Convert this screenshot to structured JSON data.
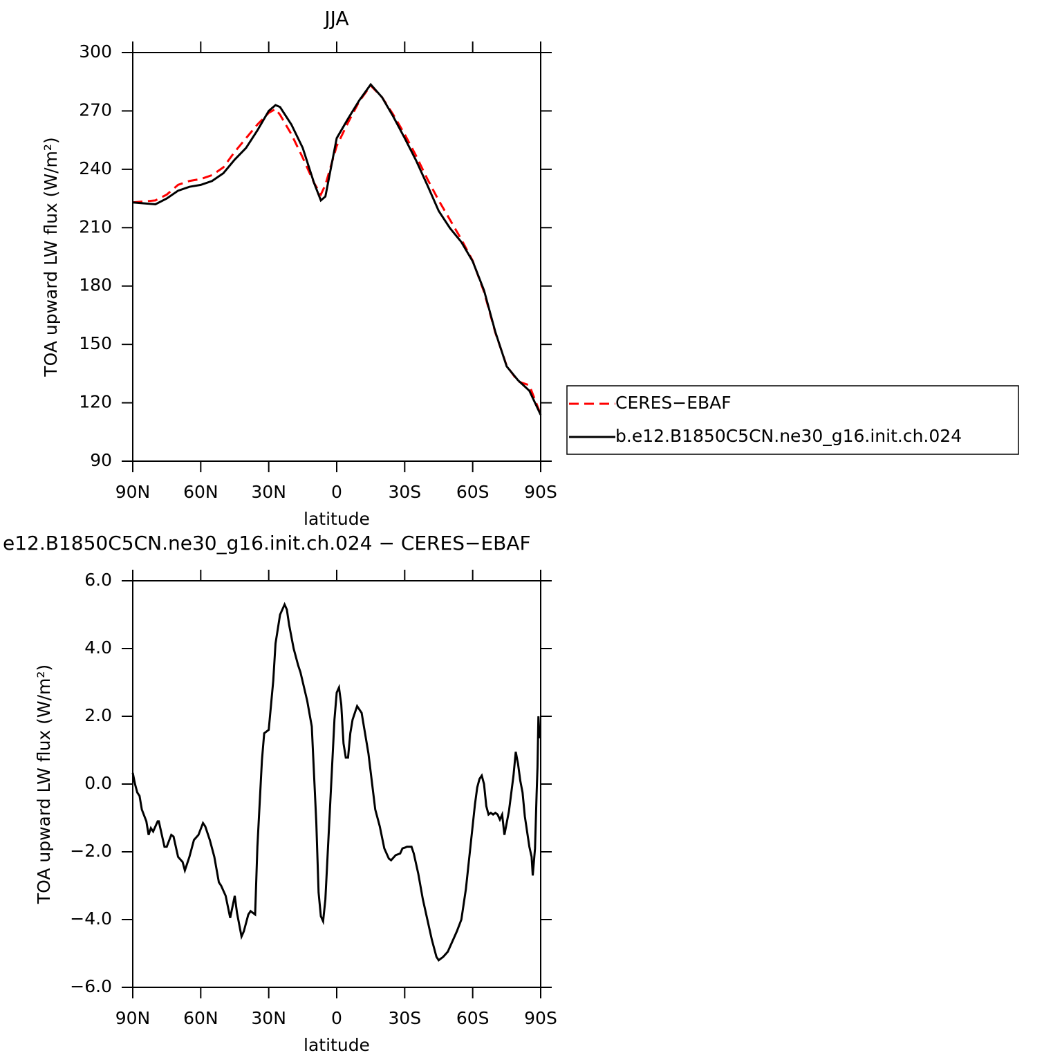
{
  "chart_data": [
    {
      "type": "line",
      "title": "JJA",
      "xlabel": "latitude",
      "ylabel": "TOA upward LW flux (W/m²)",
      "x": [
        90,
        85,
        80,
        75,
        70,
        65,
        60,
        55,
        50,
        45,
        40,
        35,
        30,
        27,
        25,
        20,
        15,
        10,
        7,
        5,
        0,
        -5,
        -10,
        -15,
        -20,
        -25,
        -30,
        -35,
        -40,
        -45,
        -50,
        -55,
        -60,
        -65,
        -70,
        -75,
        -80,
        -85,
        -90
      ],
      "series": [
        {
          "name": "CERES−EBAF",
          "color": "#ff0000",
          "dashed": true,
          "values": [
            223,
            223.5,
            224,
            227,
            232,
            234,
            235,
            237,
            241,
            249,
            256,
            263,
            269,
            271,
            268,
            258,
            246,
            233,
            227,
            232,
            252,
            264,
            275,
            283,
            277,
            268,
            258,
            247,
            235,
            224,
            214,
            204,
            193,
            177,
            156,
            139,
            131,
            129,
            114
          ]
        },
        {
          "name": "b.e12.B1850C5CN.ne30_g16.init.ch.024",
          "color": "#000000",
          "dashed": false,
          "values": [
            223,
            222.5,
            222,
            225,
            229,
            231,
            232,
            234,
            238,
            245,
            251,
            260,
            270,
            273,
            272,
            263,
            251,
            233,
            224,
            226,
            256,
            266,
            275.5,
            283.6,
            277,
            267,
            256,
            244.6,
            231.8,
            218.6,
            209.7,
            202.6,
            192.7,
            177.8,
            156.4,
            138.7,
            131.6,
            126.2,
            113.8
          ]
        }
      ],
      "xlim": [
        90,
        -90
      ],
      "xticks": [
        {
          "value": 90,
          "label": "90N"
        },
        {
          "value": 60,
          "label": "60N"
        },
        {
          "value": 30,
          "label": "30N"
        },
        0,
        {
          "value": -30,
          "label": "30S"
        },
        {
          "value": -60,
          "label": "60S"
        },
        {
          "value": -90,
          "label": "90S"
        }
      ],
      "ylim": [
        90,
        300
      ],
      "yticks": [
        90,
        120,
        150,
        180,
        210,
        240,
        270,
        300
      ],
      "legend": "right"
    },
    {
      "type": "line",
      "title": "e12.B1850C5CN.ne30_g16.init.ch.024 − CERES−EBAF",
      "xlabel": "latitude",
      "ylabel": "TOA upward LW flux (W/m²)",
      "x": [
        90,
        89,
        88,
        87,
        86,
        84,
        83,
        82,
        81,
        79,
        78.5,
        76,
        75,
        73,
        72,
        70,
        68,
        67,
        65,
        63,
        61,
        59,
        58,
        56,
        54,
        52,
        51,
        49,
        47,
        45,
        44,
        42,
        41,
        39,
        38,
        36,
        35,
        33,
        32,
        30,
        28,
        27,
        25,
        23,
        22,
        21,
        19,
        17,
        16,
        13,
        11,
        9,
        8,
        7,
        6,
        5,
        3,
        1,
        0,
        -1,
        -2,
        -3,
        -4,
        -5,
        -6,
        -7,
        -9,
        -11,
        -12,
        -14,
        -17,
        -19,
        -21,
        -23,
        -24,
        -26,
        -28,
        -29,
        -30,
        -31,
        -33,
        -34,
        -36,
        -38,
        -40,
        -42,
        -44,
        -45,
        -47,
        -49,
        -51,
        -53,
        -55,
        -57,
        -59,
        -61,
        -62,
        -63,
        -64,
        -65,
        -66,
        -67,
        -68,
        -69,
        -70,
        -71,
        -72,
        -73,
        -74,
        -76,
        -78,
        -79,
        -80,
        -81,
        -82,
        -83,
        -85,
        -86,
        -86.5,
        -87.5,
        -88.2,
        -88.6,
        -89,
        -89.5
      ],
      "series": [
        {
          "color": "#000000",
          "dashed": false,
          "values": [
            0.33,
            0,
            -0.25,
            -0.35,
            -0.75,
            -1.1,
            -1.5,
            -1.3,
            -1.4,
            -1.1,
            -1.1,
            -1.85,
            -1.85,
            -1.5,
            -1.55,
            -2.15,
            -2.3,
            -2.55,
            -2.15,
            -1.65,
            -1.5,
            -1.15,
            -1.25,
            -1.65,
            -2.15,
            -2.9,
            -3.0,
            -3.3,
            -3.95,
            -3.3,
            -3.8,
            -4.5,
            -4.35,
            -3.85,
            -3.75,
            -3.85,
            -1.85,
            0.7,
            1.5,
            1.6,
            3.05,
            4.15,
            5.0,
            5.3,
            5.15,
            4.7,
            4.0,
            3.5,
            3.3,
            2.45,
            1.7,
            -1.15,
            -3.2,
            -3.9,
            -4.05,
            -3.4,
            -0.75,
            1.9,
            2.7,
            2.85,
            2.35,
            1.2,
            0.78,
            0.78,
            1.5,
            1.9,
            2.3,
            2.1,
            1.7,
            0.9,
            -0.75,
            -1.25,
            -1.9,
            -2.2,
            -2.25,
            -2.1,
            -2.05,
            -1.9,
            -1.88,
            -1.85,
            -1.85,
            -2.05,
            -2.65,
            -3.4,
            -4.0,
            -4.6,
            -5.1,
            -5.2,
            -5.1,
            -4.95,
            -4.65,
            -4.35,
            -4.0,
            -3.1,
            -1.85,
            -0.6,
            -0.1,
            0.15,
            0.25,
            0,
            -0.65,
            -0.9,
            -0.85,
            -0.9,
            -0.85,
            -0.9,
            -1.05,
            -0.9,
            -1.5,
            -0.8,
            0.25,
            0.95,
            0.6,
            0.1,
            -0.25,
            -0.95,
            -1.85,
            -2.15,
            -2.7,
            -1.9,
            -0.3,
            0.5,
            2.0,
            1.35
          ]
        }
      ],
      "xlim": [
        90,
        -90
      ],
      "xticks": [
        {
          "value": 90,
          "label": "90N"
        },
        {
          "value": 60,
          "label": "60N"
        },
        {
          "value": 30,
          "label": "30N"
        },
        0,
        {
          "value": -30,
          "label": "30S"
        },
        {
          "value": -60,
          "label": "60S"
        },
        {
          "value": -90,
          "label": "90S"
        }
      ],
      "ylim": [
        -6,
        6
      ],
      "yticks": [
        {
          "value": -6,
          "label": "−6.0"
        },
        {
          "value": -4,
          "label": "−4.0"
        },
        {
          "value": -2,
          "label": "−2.0"
        },
        {
          "value": 0,
          "label": "0.0"
        },
        {
          "value": 2,
          "label": "2.0"
        },
        {
          "value": 4,
          "label": "4.0"
        },
        {
          "value": 6,
          "label": "6.0"
        }
      ]
    }
  ]
}
